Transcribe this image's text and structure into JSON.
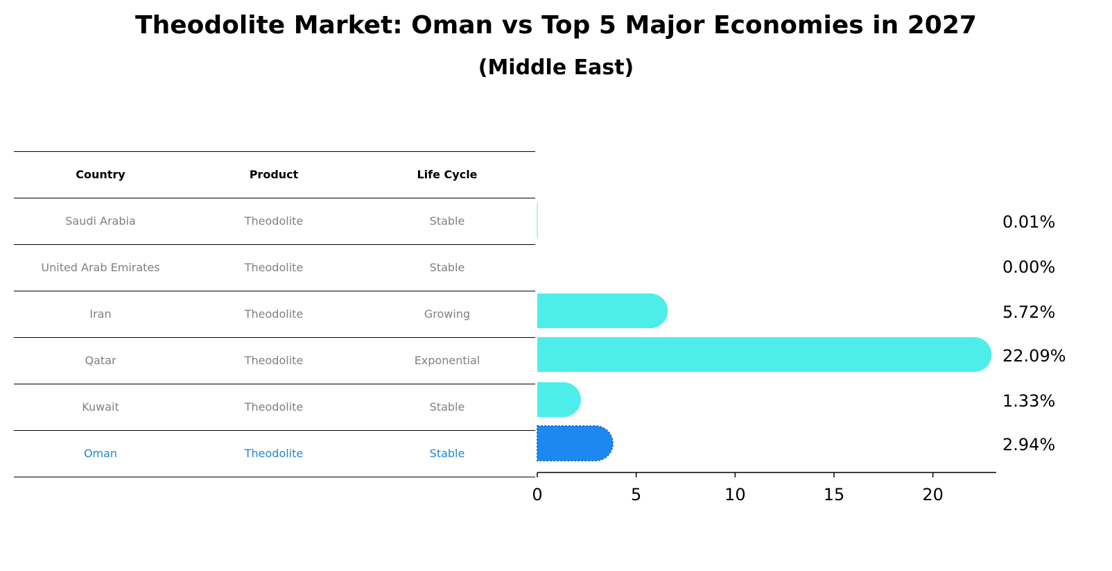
{
  "title": "Theodolite Market: Oman vs Top 5 Major Economies in 2027",
  "subtitle": "(Middle East)",
  "table": {
    "headers": [
      "Country",
      "Product",
      "Life Cycle"
    ],
    "rows": [
      {
        "country": "Saudi Arabia",
        "product": "Theodolite",
        "life_cycle": "Stable"
      },
      {
        "country": "United Arab Emirates",
        "product": "Theodolite",
        "life_cycle": "Stable"
      },
      {
        "country": "Iran",
        "product": "Theodolite",
        "life_cycle": "Growing"
      },
      {
        "country": "Qatar",
        "product": "Theodolite",
        "life_cycle": "Exponential"
      },
      {
        "country": "Kuwait",
        "product": "Theodolite",
        "life_cycle": "Stable"
      },
      {
        "country": "Oman",
        "product": "Theodolite",
        "life_cycle": "Stable"
      }
    ]
  },
  "colors": {
    "bar": "#4deeea",
    "highlight": "#1e88f0",
    "highlight_text": "#1e88d0",
    "muted_text": "#808080"
  },
  "chart_data": {
    "type": "bar",
    "orientation": "horizontal",
    "categories": [
      "Saudi Arabia",
      "United Arab Emirates",
      "Iran",
      "Qatar",
      "Kuwait",
      "Oman"
    ],
    "values": [
      0.01,
      0.0,
      5.72,
      22.09,
      1.33,
      2.94
    ],
    "value_labels": [
      "0.01%",
      "0.00%",
      "5.72%",
      "22.09%",
      "1.33%",
      "2.94%"
    ],
    "highlight": "Oman",
    "xticks": [
      "0",
      "5",
      "10",
      "15",
      "20"
    ],
    "xlim": [
      0,
      23.2
    ],
    "grid": false
  }
}
